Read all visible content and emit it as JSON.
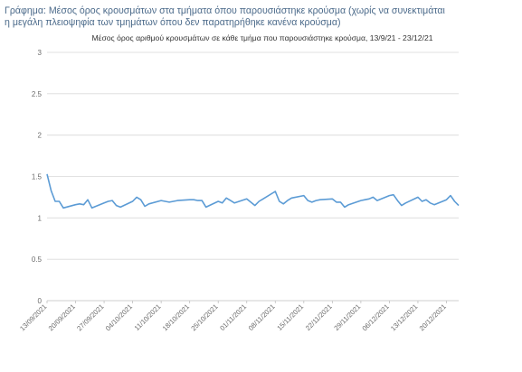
{
  "caption": {
    "line1": "Γράφημα: Μέσος όρος κρουσμάτων στα τμήματα όπου παρουσιάστηκε κρούσμα (χωρίς να συνεκτιμάται",
    "line2": "η μεγάλη πλειοψηφία των τμημάτων όπου δεν παρατηρήθηκε κανένα κρούσμα)"
  },
  "colors": {
    "series": "#5b9bd5",
    "grid": "#d9d9d9",
    "caption": "#4b6a8a"
  },
  "chart_data": {
    "type": "line",
    "title": "Μέσος όρος αριθμού κρουσμάτων σε κάθε τμήμα που παρουσιάστηκε κρούσμα, 13/9/21 - 23/12/21",
    "xlabel": "",
    "ylabel": "",
    "ylim": [
      0,
      3
    ],
    "yticks": [
      "0",
      "0.5",
      "1",
      "1.5",
      "2",
      "2.5",
      "3"
    ],
    "xlim": [
      "13/09/2021",
      "23/12/2021"
    ],
    "xtick_labels": [
      "13/09/2021",
      "20/09/2021",
      "27/09/2021",
      "04/10/2021",
      "11/10/2021",
      "18/10/2021",
      "25/10/2021",
      "01/11/2021",
      "08/11/2021",
      "15/11/2021",
      "22/11/2021",
      "29/11/2021",
      "06/12/2021",
      "13/12/2021",
      "20/12/2021"
    ],
    "grid": true,
    "legend": "none",
    "series": [
      {
        "x": [
          "13/09/2021",
          "14/09/2021",
          "15/09/2021",
          "16/09/2021",
          "17/09/2021",
          "20/09/2021",
          "21/09/2021",
          "22/09/2021",
          "23/09/2021",
          "24/09/2021",
          "27/09/2021",
          "28/09/2021",
          "29/09/2021",
          "30/09/2021",
          "01/10/2021",
          "04/10/2021",
          "05/10/2021",
          "06/10/2021",
          "07/10/2021",
          "08/10/2021",
          "11/10/2021",
          "12/10/2021",
          "13/10/2021",
          "14/10/2021",
          "15/10/2021",
          "18/10/2021",
          "19/10/2021",
          "20/10/2021",
          "21/10/2021",
          "22/10/2021",
          "25/10/2021",
          "26/10/2021",
          "27/10/2021",
          "29/10/2021",
          "01/11/2021",
          "02/11/2021",
          "03/11/2021",
          "04/11/2021",
          "05/11/2021",
          "08/11/2021",
          "09/11/2021",
          "10/11/2021",
          "11/11/2021",
          "12/11/2021",
          "15/11/2021",
          "16/11/2021",
          "17/11/2021",
          "18/11/2021",
          "19/11/2021",
          "22/11/2021",
          "23/11/2021",
          "24/11/2021",
          "25/11/2021",
          "26/11/2021",
          "29/11/2021",
          "30/11/2021",
          "01/12/2021",
          "02/12/2021",
          "03/12/2021",
          "06/12/2021",
          "07/12/2021",
          "08/12/2021",
          "09/12/2021",
          "10/12/2021",
          "13/12/2021",
          "14/12/2021",
          "15/12/2021",
          "16/12/2021",
          "17/12/2021",
          "20/12/2021",
          "21/12/2021",
          "22/12/2021",
          "23/12/2021"
        ],
        "values": [
          1.53,
          1.33,
          1.2,
          1.2,
          1.12,
          1.16,
          1.17,
          1.16,
          1.22,
          1.12,
          1.18,
          1.2,
          1.21,
          1.15,
          1.13,
          1.2,
          1.25,
          1.22,
          1.14,
          1.17,
          1.21,
          1.2,
          1.19,
          1.2,
          1.21,
          1.22,
          1.22,
          1.21,
          1.21,
          1.13,
          1.2,
          1.18,
          1.24,
          1.18,
          1.23,
          1.19,
          1.15,
          1.2,
          1.23,
          1.32,
          1.2,
          1.17,
          1.21,
          1.24,
          1.27,
          1.21,
          1.19,
          1.21,
          1.22,
          1.23,
          1.19,
          1.19,
          1.13,
          1.16,
          1.21,
          1.22,
          1.23,
          1.25,
          1.21,
          1.27,
          1.28,
          1.21,
          1.15,
          1.18,
          1.25,
          1.2,
          1.22,
          1.18,
          1.16,
          1.22,
          1.27,
          1.2,
          1.15
        ]
      }
    ]
  }
}
